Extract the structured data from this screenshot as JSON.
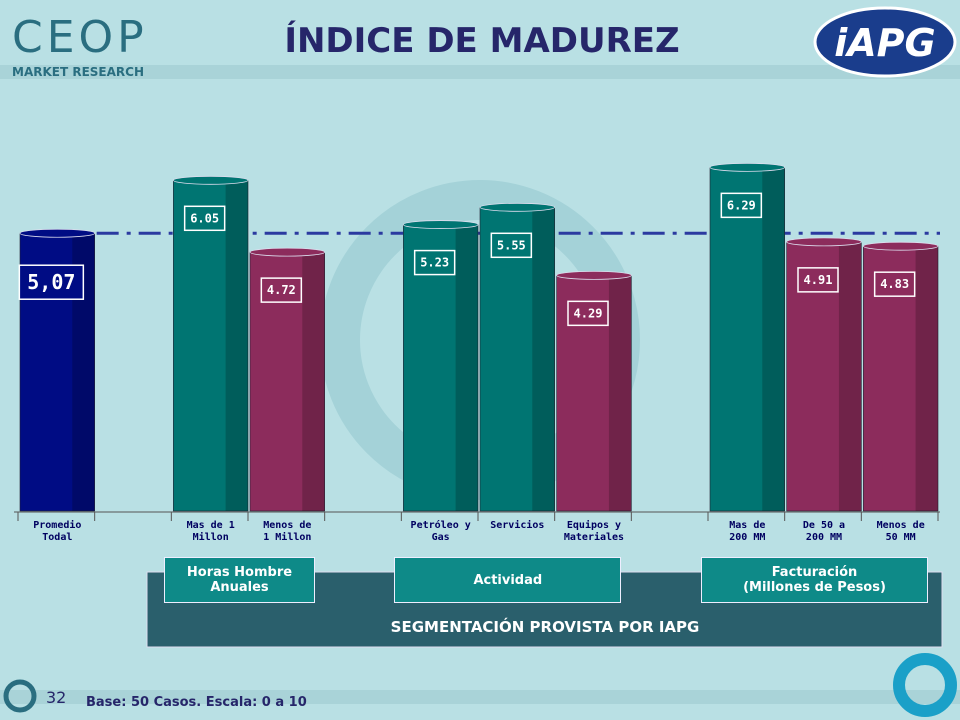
{
  "header": {
    "logo": "CEOP",
    "logo_sub": "MARKET RESEARCH",
    "title": "ÍNDICE DE MADUREZ",
    "partner_logo": "iAPG"
  },
  "chart_data": {
    "type": "bar",
    "categories": [
      "Promedio\nTodal",
      null,
      "Mas de 1\nMillon",
      "Menos de\n1 Millon",
      null,
      "Petróleo y\nGas",
      "Servicios",
      "Equipos y\nMateriales",
      null,
      "Mas de\n200 MM",
      "De 50 a\n200 MM",
      "Menos de\n50 MM"
    ],
    "values": [
      5.07,
      null,
      6.05,
      4.72,
      null,
      5.23,
      5.55,
      4.29,
      null,
      6.29,
      4.91,
      4.83
    ],
    "value_labels": [
      "5,07",
      null,
      "6.05",
      "4.72",
      null,
      "5.23",
      "5.55",
      "4.29",
      null,
      "6.29",
      "4.91",
      "4.83"
    ],
    "colors": [
      "#000c84",
      null,
      "#007572",
      "#8c2c5c",
      null,
      "#007572",
      "#007572",
      "#8c2c5c",
      null,
      "#007572",
      "#8c2c5c",
      "#8c2c5c"
    ],
    "reference_line": {
      "value": 5.07,
      "color": "#2b3aa0"
    }
  },
  "groups": [
    {
      "label": "Horas Hombre Anuales",
      "from": 2,
      "to": 3
    },
    {
      "label": "Actividad",
      "from": 5,
      "to": 7
    },
    {
      "label": "Facturación\n(Millones de Pesos)",
      "from": 9,
      "to": 11
    }
  ],
  "segment_caption": "SEGMENTACIÓN PROVISTA POR IAPG",
  "footer": {
    "page": "32",
    "note": "Base: 50 Casos. Escala: 0 a 10"
  }
}
